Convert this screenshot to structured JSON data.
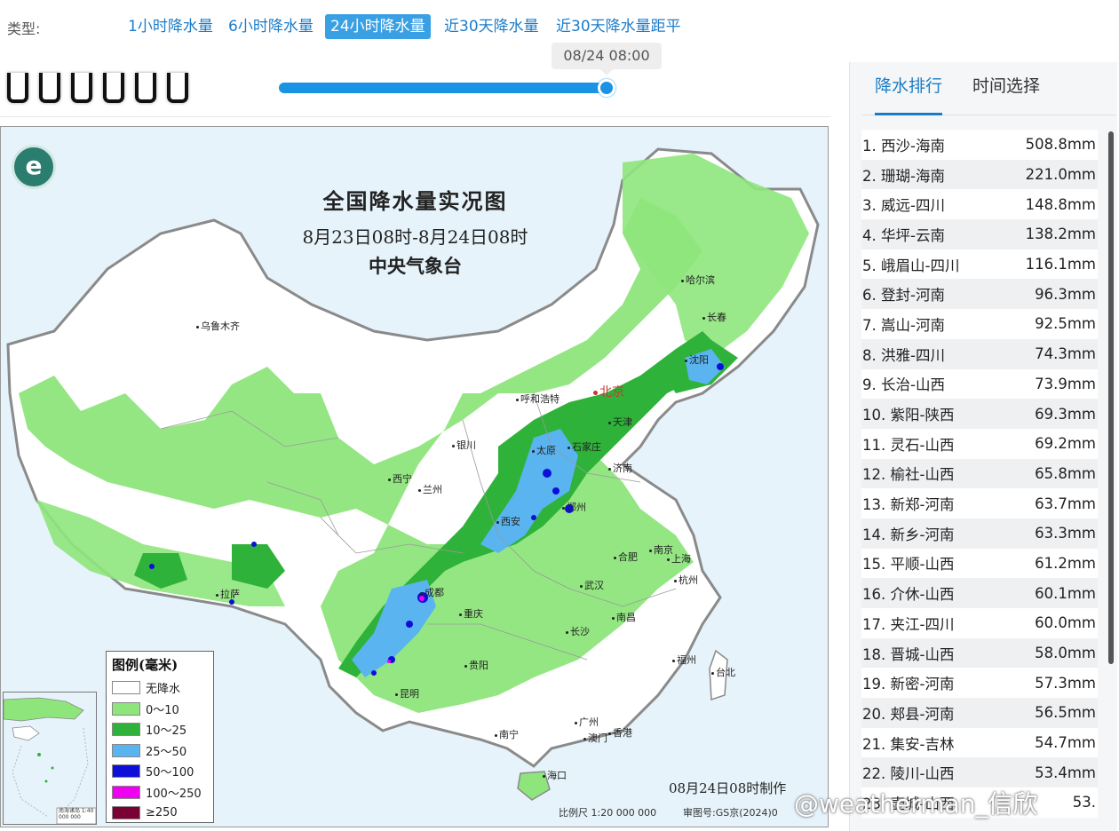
{
  "typebar": {
    "label": "类型:",
    "tabs": [
      {
        "label": "1小时降水量",
        "active": false
      },
      {
        "label": "6小时降水量",
        "active": false
      },
      {
        "label": "24小时降水量",
        "active": true
      },
      {
        "label": "近30天降水量",
        "active": false
      },
      {
        "label": "近30天降水量距平",
        "active": false
      }
    ]
  },
  "slider": {
    "time_label": "08/24 08:00",
    "progress": 1.0
  },
  "map": {
    "title": "全国降水量实况图",
    "period": "8月23日08时-8月24日08时",
    "agency": "中央气象台",
    "made_time": "08月24日08时制作",
    "scale": "比例尺 1:20 000 000",
    "review_no": "审图号:GS京(2024)0",
    "inset_label": "南海诸岛 1:40 000 000",
    "cities": {
      "beijing": "北京",
      "haerbin": "哈尔滨",
      "changchun": "长春",
      "shenyang": "沈阳",
      "urumqi": "乌鲁木齐",
      "hohhot": "呼和浩特",
      "tianjin": "天津",
      "yinchuan": "银川",
      "taiyuan": "太原",
      "shijiazhuang": "石家庄",
      "jinan": "济南",
      "xining": "西宁",
      "lanzhou": "兰州",
      "zhengzhou": "郑州",
      "xian": "西安",
      "nanjing": "南京",
      "hefei": "合肥",
      "shanghai": "上海",
      "lhasa": "拉萨",
      "chengdu": "成都",
      "wuhan": "武汉",
      "hangzhou": "杭州",
      "chongqing": "重庆",
      "nanchang": "南昌",
      "changsha": "长沙",
      "guiyang": "贵阳",
      "fuzhou": "福州",
      "taipei": "台北",
      "kunming": "昆明",
      "guangzhou": "广州",
      "nanning": "南宁",
      "macau": "澳门",
      "hongkong": "香港",
      "haikou": "海口"
    },
    "legend": {
      "title": "图例(毫米)",
      "items": [
        {
          "label": "无降水",
          "color": "#ffffff"
        },
        {
          "label": "0～10",
          "color": "#8ee57c"
        },
        {
          "label": "10～25",
          "color": "#2fb23a"
        },
        {
          "label": "25～50",
          "color": "#5ab4f0"
        },
        {
          "label": "50～100",
          "color": "#0d0fd8"
        },
        {
          "label": "100～250",
          "color": "#f000f0"
        },
        {
          "label": "≥250",
          "color": "#7b0033"
        }
      ]
    }
  },
  "side_panel": {
    "tabs": [
      {
        "label": "降水排行",
        "active": true
      },
      {
        "label": "时间选择",
        "active": false
      }
    ],
    "ranking": [
      {
        "name": "1. 西沙-海南",
        "value": "508.8mm"
      },
      {
        "name": "2. 珊瑚-海南",
        "value": "221.0mm"
      },
      {
        "name": "3. 威远-四川",
        "value": "148.8mm"
      },
      {
        "name": "4. 华坪-云南",
        "value": "138.2mm"
      },
      {
        "name": "5. 峨眉山-四川",
        "value": "116.1mm"
      },
      {
        "name": "6. 登封-河南",
        "value": "96.3mm"
      },
      {
        "name": "7. 嵩山-河南",
        "value": "92.5mm"
      },
      {
        "name": "8. 洪雅-四川",
        "value": "74.3mm"
      },
      {
        "name": "9. 长治-山西",
        "value": "73.9mm"
      },
      {
        "name": "10. 紫阳-陕西",
        "value": "69.3mm"
      },
      {
        "name": "11. 灵石-山西",
        "value": "69.2mm"
      },
      {
        "name": "12. 榆社-山西",
        "value": "65.8mm"
      },
      {
        "name": "13. 新郑-河南",
        "value": "63.7mm"
      },
      {
        "name": "14. 新乡-河南",
        "value": "63.3mm"
      },
      {
        "name": "15. 平顺-山西",
        "value": "61.2mm"
      },
      {
        "name": "16. 介休-山西",
        "value": "60.1mm"
      },
      {
        "name": "17. 夹江-四川",
        "value": "60.0mm"
      },
      {
        "name": "18. 晋城-山西",
        "value": "58.0mm"
      },
      {
        "name": "19. 新密-河南",
        "value": "57.3mm"
      },
      {
        "name": "20. 郏县-河南",
        "value": "56.5mm"
      },
      {
        "name": "21. 集安-吉林",
        "value": "54.7mm"
      },
      {
        "name": "22. 陵川-山西",
        "value": "53.4mm"
      },
      {
        "name": "23. 壶城-山西",
        "value": "53."
      }
    ]
  },
  "watermark": "@weatherman_信欣"
}
